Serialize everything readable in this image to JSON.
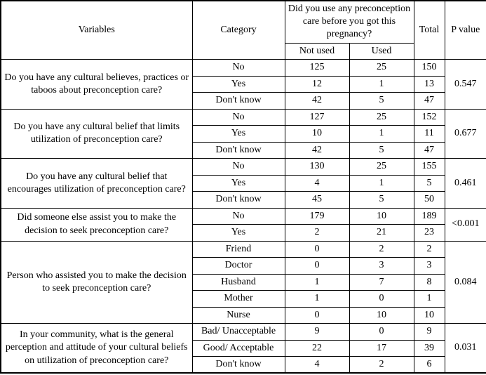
{
  "table": {
    "headers": {
      "variables": "Variables",
      "category": "Category",
      "span_question": "Did you use any preconception care before you got this pregnancy?",
      "not_used": "Not used",
      "used": "Used",
      "total": "Total",
      "p_value": "P value"
    },
    "sections": [
      {
        "variable": "Do you have any cultural believes, practices or taboos about preconception care?",
        "rows": [
          {
            "category": "No",
            "not_used": "125",
            "used": "25",
            "total": "150"
          },
          {
            "category": "Yes",
            "not_used": "12",
            "used": "1",
            "total": "13"
          },
          {
            "category": "Don't know",
            "not_used": "42",
            "used": "5",
            "total": "47"
          }
        ],
        "p_value": "0.547",
        "p_bold": false
      },
      {
        "variable": "Do you have any cultural belief that limits utilization of preconception care?",
        "rows": [
          {
            "category": "No",
            "not_used": "127",
            "used": "25",
            "total": "152"
          },
          {
            "category": "Yes",
            "not_used": "10",
            "used": "1",
            "total": "11"
          },
          {
            "category": "Don't know",
            "not_used": "42",
            "used": "5",
            "total": "47"
          }
        ],
        "p_value": "0.677",
        "p_bold": false
      },
      {
        "variable": "Do you have any cultural belief that encourages utilization of preconception care?",
        "rows": [
          {
            "category": "No",
            "not_used": "130",
            "used": "25",
            "total": "155"
          },
          {
            "category": "Yes",
            "not_used": "4",
            "used": "1",
            "total": "5"
          },
          {
            "category": "Don't know",
            "not_used": "45",
            "used": "5",
            "total": "50"
          }
        ],
        "p_value": "0.461",
        "p_bold": false
      },
      {
        "variable": "Did someone else assist you to make the decision to seek preconception care?",
        "rows": [
          {
            "category": "No",
            "not_used": "179",
            "used": "10",
            "total": "189"
          },
          {
            "category": "Yes",
            "not_used": "2",
            "used": "21",
            "total": "23"
          }
        ],
        "p_value": "<0.001",
        "p_bold": true
      },
      {
        "variable": "Person who assisted you to make the decision to seek preconception care?",
        "rows": [
          {
            "category": "Friend",
            "not_used": "0",
            "used": "2",
            "total": "2"
          },
          {
            "category": "Doctor",
            "not_used": "0",
            "used": "3",
            "total": "3"
          },
          {
            "category": "Husband",
            "not_used": "1",
            "used": "7",
            "total": "8"
          },
          {
            "category": "Mother",
            "not_used": "1",
            "used": "0",
            "total": "1"
          },
          {
            "category": "Nurse",
            "not_used": "0",
            "used": "10",
            "total": "10"
          }
        ],
        "p_value": "0.084",
        "p_bold": false
      },
      {
        "variable": "In your community, what is the general perception and attitude of your cultural beliefs on utilization of preconception care?",
        "rows": [
          {
            "category": "Bad/ Unacceptable",
            "not_used": "9",
            "used": "0",
            "total": "9"
          },
          {
            "category": "Good/ Acceptable",
            "not_used": "22",
            "used": "17",
            "total": "39"
          },
          {
            "category": "Don't know",
            "not_used": "4",
            "used": "2",
            "total": "6"
          }
        ],
        "p_value": "0.031",
        "p_bold": true
      }
    ]
  }
}
